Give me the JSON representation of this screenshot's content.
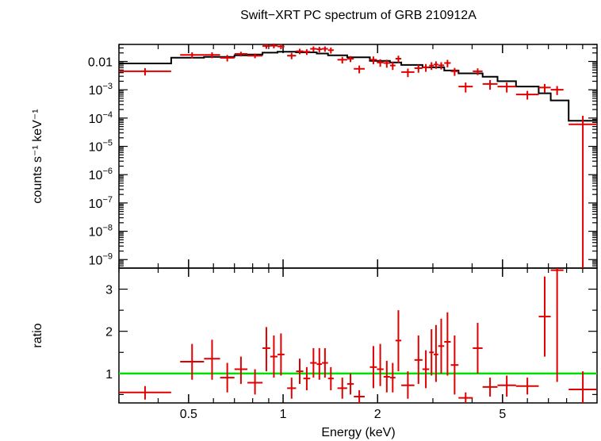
{
  "chart_data": {
    "type": "scatter",
    "title": "Swift−XRT PC spectrum of GRB 210912A",
    "xlabel": "Energy (keV)",
    "x_scale": "log",
    "xlim": [
      0.3,
      10
    ],
    "x_ticks": [
      {
        "value": 0.5,
        "label": "0.5"
      },
      {
        "value": 1,
        "label": "1"
      },
      {
        "value": 2,
        "label": "2"
      },
      {
        "value": 5,
        "label": "5"
      }
    ],
    "colors": {
      "data": "#e00000",
      "model": "#000000",
      "unity": "#00e000"
    },
    "panels": [
      {
        "id": "spectrum",
        "ylabel": "counts s⁻¹ keV⁻¹",
        "y_scale": "log",
        "ylim": [
          5e-10,
          0.04
        ],
        "y_ticks": [
          {
            "value": 0.01,
            "label": "0.01"
          },
          {
            "value": 0.001,
            "base": "10",
            "exp": "−3"
          },
          {
            "value": 0.0001,
            "base": "10",
            "exp": "−4"
          },
          {
            "value": 1e-05,
            "base": "10",
            "exp": "−5"
          },
          {
            "value": 1e-06,
            "base": "10",
            "exp": "−6"
          },
          {
            "value": 1e-07,
            "base": "10",
            "exp": "−7"
          },
          {
            "value": 1e-08,
            "base": "10",
            "exp": "−8"
          },
          {
            "value": 1e-09,
            "base": "10",
            "exp": "−9"
          }
        ],
        "series": [
          {
            "kind": "data",
            "points": [
              {
                "x1": 0.3,
                "x2": 0.44,
                "y": 0.0045,
                "ylo": 0.0032,
                "yhi": 0.0058
              },
              {
                "x1": 0.47,
                "x2": 0.56,
                "y": 0.017,
                "ylo": 0.013,
                "yhi": 0.021
              },
              {
                "x1": 0.56,
                "x2": 0.63,
                "y": 0.017,
                "ylo": 0.013,
                "yhi": 0.021
              },
              {
                "x1": 0.63,
                "x2": 0.7,
                "y": 0.0135,
                "ylo": 0.01,
                "yhi": 0.017
              },
              {
                "x1": 0.7,
                "x2": 0.77,
                "y": 0.0185,
                "ylo": 0.015,
                "yhi": 0.022
              },
              {
                "x1": 0.77,
                "x2": 0.86,
                "y": 0.016,
                "ylo": 0.013,
                "yhi": 0.019
              },
              {
                "x1": 0.86,
                "x2": 0.91,
                "y": 0.035,
                "ylo": 0.028,
                "yhi": 0.042
              },
              {
                "x1": 0.91,
                "x2": 0.96,
                "y": 0.036,
                "ylo": 0.029,
                "yhi": 0.043
              },
              {
                "x1": 0.96,
                "x2": 1.01,
                "y": 0.034,
                "ylo": 0.027,
                "yhi": 0.041
              },
              {
                "x1": 1.03,
                "x2": 1.1,
                "y": 0.016,
                "ylo": 0.012,
                "yhi": 0.02
              },
              {
                "x1": 1.1,
                "x2": 1.16,
                "y": 0.023,
                "ylo": 0.018,
                "yhi": 0.028
              },
              {
                "x1": 1.16,
                "x2": 1.22,
                "y": 0.022,
                "ylo": 0.017,
                "yhi": 0.027
              },
              {
                "x1": 1.22,
                "x2": 1.28,
                "y": 0.028,
                "ylo": 0.022,
                "yhi": 0.034
              },
              {
                "x1": 1.28,
                "x2": 1.33,
                "y": 0.027,
                "ylo": 0.021,
                "yhi": 0.033
              },
              {
                "x1": 1.33,
                "x2": 1.39,
                "y": 0.028,
                "ylo": 0.022,
                "yhi": 0.034
              },
              {
                "x1": 1.39,
                "x2": 1.45,
                "y": 0.025,
                "ylo": 0.019,
                "yhi": 0.031
              },
              {
                "x1": 1.49,
                "x2": 1.6,
                "y": 0.0115,
                "ylo": 0.0085,
                "yhi": 0.0145
              },
              {
                "x1": 1.6,
                "x2": 1.68,
                "y": 0.0125,
                "ylo": 0.0095,
                "yhi": 0.0155
              },
              {
                "x1": 1.68,
                "x2": 1.82,
                "y": 0.0055,
                "ylo": 0.0038,
                "yhi": 0.0072
              },
              {
                "x1": 1.89,
                "x2": 1.99,
                "y": 0.0115,
                "ylo": 0.008,
                "yhi": 0.015
              },
              {
                "x1": 1.99,
                "x2": 2.09,
                "y": 0.0092,
                "ylo": 0.0065,
                "yhi": 0.012
              },
              {
                "x1": 2.09,
                "x2": 2.19,
                "y": 0.0088,
                "ylo": 0.006,
                "yhi": 0.0115
              },
              {
                "x1": 2.19,
                "x2": 2.28,
                "y": 0.0072,
                "ylo": 0.005,
                "yhi": 0.0095
              },
              {
                "x1": 2.28,
                "x2": 2.38,
                "y": 0.0125,
                "ylo": 0.009,
                "yhi": 0.016
              },
              {
                "x1": 2.38,
                "x2": 2.62,
                "y": 0.0042,
                "ylo": 0.0028,
                "yhi": 0.0056
              },
              {
                "x1": 2.62,
                "x2": 2.78,
                "y": 0.0058,
                "ylo": 0.004,
                "yhi": 0.0076
              },
              {
                "x1": 2.78,
                "x2": 2.92,
                "y": 0.0062,
                "ylo": 0.0043,
                "yhi": 0.0081
              },
              {
                "x1": 2.92,
                "x2": 3.02,
                "y": 0.0072,
                "ylo": 0.005,
                "yhi": 0.0094
              },
              {
                "x1": 3.02,
                "x2": 3.12,
                "y": 0.0078,
                "ylo": 0.0055,
                "yhi": 0.0101
              },
              {
                "x1": 3.12,
                "x2": 3.26,
                "y": 0.0073,
                "ylo": 0.0052,
                "yhi": 0.0094
              },
              {
                "x1": 3.26,
                "x2": 3.42,
                "y": 0.0088,
                "ylo": 0.0062,
                "yhi": 0.0114
              },
              {
                "x1": 3.42,
                "x2": 3.62,
                "y": 0.0045,
                "ylo": 0.0031,
                "yhi": 0.0059
              },
              {
                "x1": 3.62,
                "x2": 4.02,
                "y": 0.0013,
                "ylo": 0.0008,
                "yhi": 0.0018
              },
              {
                "x1": 4.02,
                "x2": 4.32,
                "y": 0.0045,
                "ylo": 0.0033,
                "yhi": 0.0057
              },
              {
                "x1": 4.32,
                "x2": 4.82,
                "y": 0.0016,
                "ylo": 0.001,
                "yhi": 0.0022
              },
              {
                "x1": 4.82,
                "x2": 5.52,
                "y": 0.0013,
                "ylo": 0.0008,
                "yhi": 0.0018
              },
              {
                "x1": 5.52,
                "x2": 6.52,
                "y": 0.00068,
                "ylo": 0.00045,
                "yhi": 0.00091
              },
              {
                "x1": 6.52,
                "x2": 7.12,
                "y": 0.0012,
                "ylo": 0.0008,
                "yhi": 0.0016
              },
              {
                "x1": 7.12,
                "x2": 7.82,
                "y": 0.001,
                "ylo": 0.00065,
                "yhi": 0.00135
              },
              {
                "x1": 8.12,
                "x2": 10.0,
                "y": 6e-05,
                "ylo": 5e-10,
                "yhi": 0.00012
              }
            ]
          },
          {
            "kind": "model",
            "steps": [
              {
                "x": 0.3,
                "y": 0.0085
              },
              {
                "x": 0.44,
                "y": 0.0135
              },
              {
                "x": 0.56,
                "y": 0.0145
              },
              {
                "x": 0.7,
                "y": 0.0165
              },
              {
                "x": 0.77,
                "y": 0.0175
              },
              {
                "x": 0.86,
                "y": 0.0205
              },
              {
                "x": 0.96,
                "y": 0.022
              },
              {
                "x": 1.1,
                "y": 0.021
              },
              {
                "x": 1.28,
                "y": 0.019
              },
              {
                "x": 1.39,
                "y": 0.0165
              },
              {
                "x": 1.6,
                "y": 0.014
              },
              {
                "x": 1.89,
                "y": 0.0105
              },
              {
                "x": 2.19,
                "y": 0.0092
              },
              {
                "x": 2.38,
                "y": 0.0075
              },
              {
                "x": 2.78,
                "y": 0.0062
              },
              {
                "x": 3.26,
                "y": 0.0048
              },
              {
                "x": 3.62,
                "y": 0.0038
              },
              {
                "x": 4.32,
                "y": 0.0029
              },
              {
                "x": 4.82,
                "y": 0.002
              },
              {
                "x": 5.52,
                "y": 0.0013
              },
              {
                "x": 6.52,
                "y": 0.00075
              },
              {
                "x": 7.12,
                "y": 0.00042
              },
              {
                "x": 8.12,
                "y": 8e-05
              },
              {
                "x": 10.0,
                "y": 8e-05
              }
            ]
          }
        ]
      },
      {
        "id": "ratio",
        "ylabel": "ratio",
        "y_scale": "linear",
        "ylim": [
          0.3,
          3.5
        ],
        "y_ticks": [
          {
            "value": 1,
            "label": "1"
          },
          {
            "value": 2,
            "label": "2"
          },
          {
            "value": 3,
            "label": "3"
          }
        ],
        "unity_line": 1,
        "series": [
          {
            "kind": "data",
            "points": [
              {
                "x1": 0.3,
                "x2": 0.44,
                "y": 0.55,
                "ylo": 0.38,
                "yhi": 0.7
              },
              {
                "x1": 0.47,
                "x2": 0.56,
                "y": 1.28,
                "ylo": 0.85,
                "yhi": 1.7
              },
              {
                "x1": 0.56,
                "x2": 0.63,
                "y": 1.35,
                "ylo": 0.85,
                "yhi": 1.8
              },
              {
                "x1": 0.63,
                "x2": 0.7,
                "y": 0.9,
                "ylo": 0.55,
                "yhi": 1.25
              },
              {
                "x1": 0.7,
                "x2": 0.77,
                "y": 1.1,
                "ylo": 0.75,
                "yhi": 1.4
              },
              {
                "x1": 0.77,
                "x2": 0.86,
                "y": 0.78,
                "ylo": 0.5,
                "yhi": 1.1
              },
              {
                "x1": 0.86,
                "x2": 0.91,
                "y": 1.6,
                "ylo": 1.05,
                "yhi": 2.1
              },
              {
                "x1": 0.91,
                "x2": 0.96,
                "y": 1.4,
                "ylo": 0.9,
                "yhi": 1.9
              },
              {
                "x1": 0.96,
                "x2": 1.01,
                "y": 1.45,
                "ylo": 0.95,
                "yhi": 1.95
              },
              {
                "x1": 1.03,
                "x2": 1.1,
                "y": 0.65,
                "ylo": 0.4,
                "yhi": 0.9
              },
              {
                "x1": 1.1,
                "x2": 1.16,
                "y": 1.05,
                "ylo": 0.75,
                "yhi": 1.35
              },
              {
                "x1": 1.16,
                "x2": 1.22,
                "y": 0.88,
                "ylo": 0.6,
                "yhi": 1.15
              },
              {
                "x1": 1.22,
                "x2": 1.28,
                "y": 1.25,
                "ylo": 0.9,
                "yhi": 1.6
              },
              {
                "x1": 1.28,
                "x2": 1.33,
                "y": 1.22,
                "ylo": 0.85,
                "yhi": 1.6
              },
              {
                "x1": 1.33,
                "x2": 1.39,
                "y": 1.25,
                "ylo": 0.9,
                "yhi": 1.6
              },
              {
                "x1": 1.39,
                "x2": 1.45,
                "y": 0.88,
                "ylo": 0.6,
                "yhi": 1.15
              },
              {
                "x1": 1.49,
                "x2": 1.6,
                "y": 0.65,
                "ylo": 0.4,
                "yhi": 0.9
              },
              {
                "x1": 1.6,
                "x2": 1.68,
                "y": 0.75,
                "ylo": 0.5,
                "yhi": 1.0
              },
              {
                "x1": 1.68,
                "x2": 1.82,
                "y": 0.45,
                "ylo": 0.3,
                "yhi": 0.6
              },
              {
                "x1": 1.89,
                "x2": 1.99,
                "y": 1.15,
                "ylo": 0.65,
                "yhi": 1.65
              },
              {
                "x1": 1.99,
                "x2": 2.09,
                "y": 1.1,
                "ylo": 0.7,
                "yhi": 1.7
              },
              {
                "x1": 2.09,
                "x2": 2.19,
                "y": 0.92,
                "ylo": 0.55,
                "yhi": 1.3
              },
              {
                "x1": 2.19,
                "x2": 2.28,
                "y": 0.9,
                "ylo": 0.55,
                "yhi": 1.25
              },
              {
                "x1": 2.28,
                "x2": 2.38,
                "y": 1.78,
                "ylo": 1.05,
                "yhi": 2.5
              },
              {
                "x1": 2.38,
                "x2": 2.62,
                "y": 0.72,
                "ylo": 0.4,
                "yhi": 1.05
              },
              {
                "x1": 2.62,
                "x2": 2.78,
                "y": 1.32,
                "ylo": 0.75,
                "yhi": 1.9
              },
              {
                "x1": 2.78,
                "x2": 2.92,
                "y": 1.1,
                "ylo": 0.65,
                "yhi": 1.55
              },
              {
                "x1": 2.92,
                "x2": 3.02,
                "y": 1.5,
                "ylo": 0.95,
                "yhi": 2.05
              },
              {
                "x1": 3.02,
                "x2": 3.12,
                "y": 1.45,
                "ylo": 0.8,
                "yhi": 2.15
              },
              {
                "x1": 3.12,
                "x2": 3.26,
                "y": 1.65,
                "ylo": 1.0,
                "yhi": 2.3
              },
              {
                "x1": 3.26,
                "x2": 3.42,
                "y": 1.75,
                "ylo": 0.95,
                "yhi": 2.45
              },
              {
                "x1": 3.42,
                "x2": 3.62,
                "y": 1.2,
                "ylo": 0.5,
                "yhi": 1.9
              },
              {
                "x1": 3.62,
                "x2": 4.02,
                "y": 0.42,
                "ylo": 0.3,
                "yhi": 0.55
              },
              {
                "x1": 4.02,
                "x2": 4.32,
                "y": 1.6,
                "ylo": 1.0,
                "yhi": 2.2
              },
              {
                "x1": 4.32,
                "x2": 4.82,
                "y": 0.68,
                "ylo": 0.45,
                "yhi": 0.9
              },
              {
                "x1": 4.82,
                "x2": 5.52,
                "y": 0.72,
                "ylo": 0.45,
                "yhi": 0.95
              },
              {
                "x1": 5.52,
                "x2": 6.52,
                "y": 0.7,
                "ylo": 0.5,
                "yhi": 0.9
              },
              {
                "x1": 6.52,
                "x2": 7.12,
                "y": 2.35,
                "ylo": 1.4,
                "yhi": 3.3
              },
              {
                "x1": 7.12,
                "x2": 7.82,
                "y": 3.45,
                "ylo": 0.8,
                "yhi": 3.5
              },
              {
                "x1": 8.12,
                "x2": 10.0,
                "y": 0.62,
                "ylo": 0.3,
                "yhi": 1.05
              }
            ]
          }
        ]
      }
    ]
  }
}
